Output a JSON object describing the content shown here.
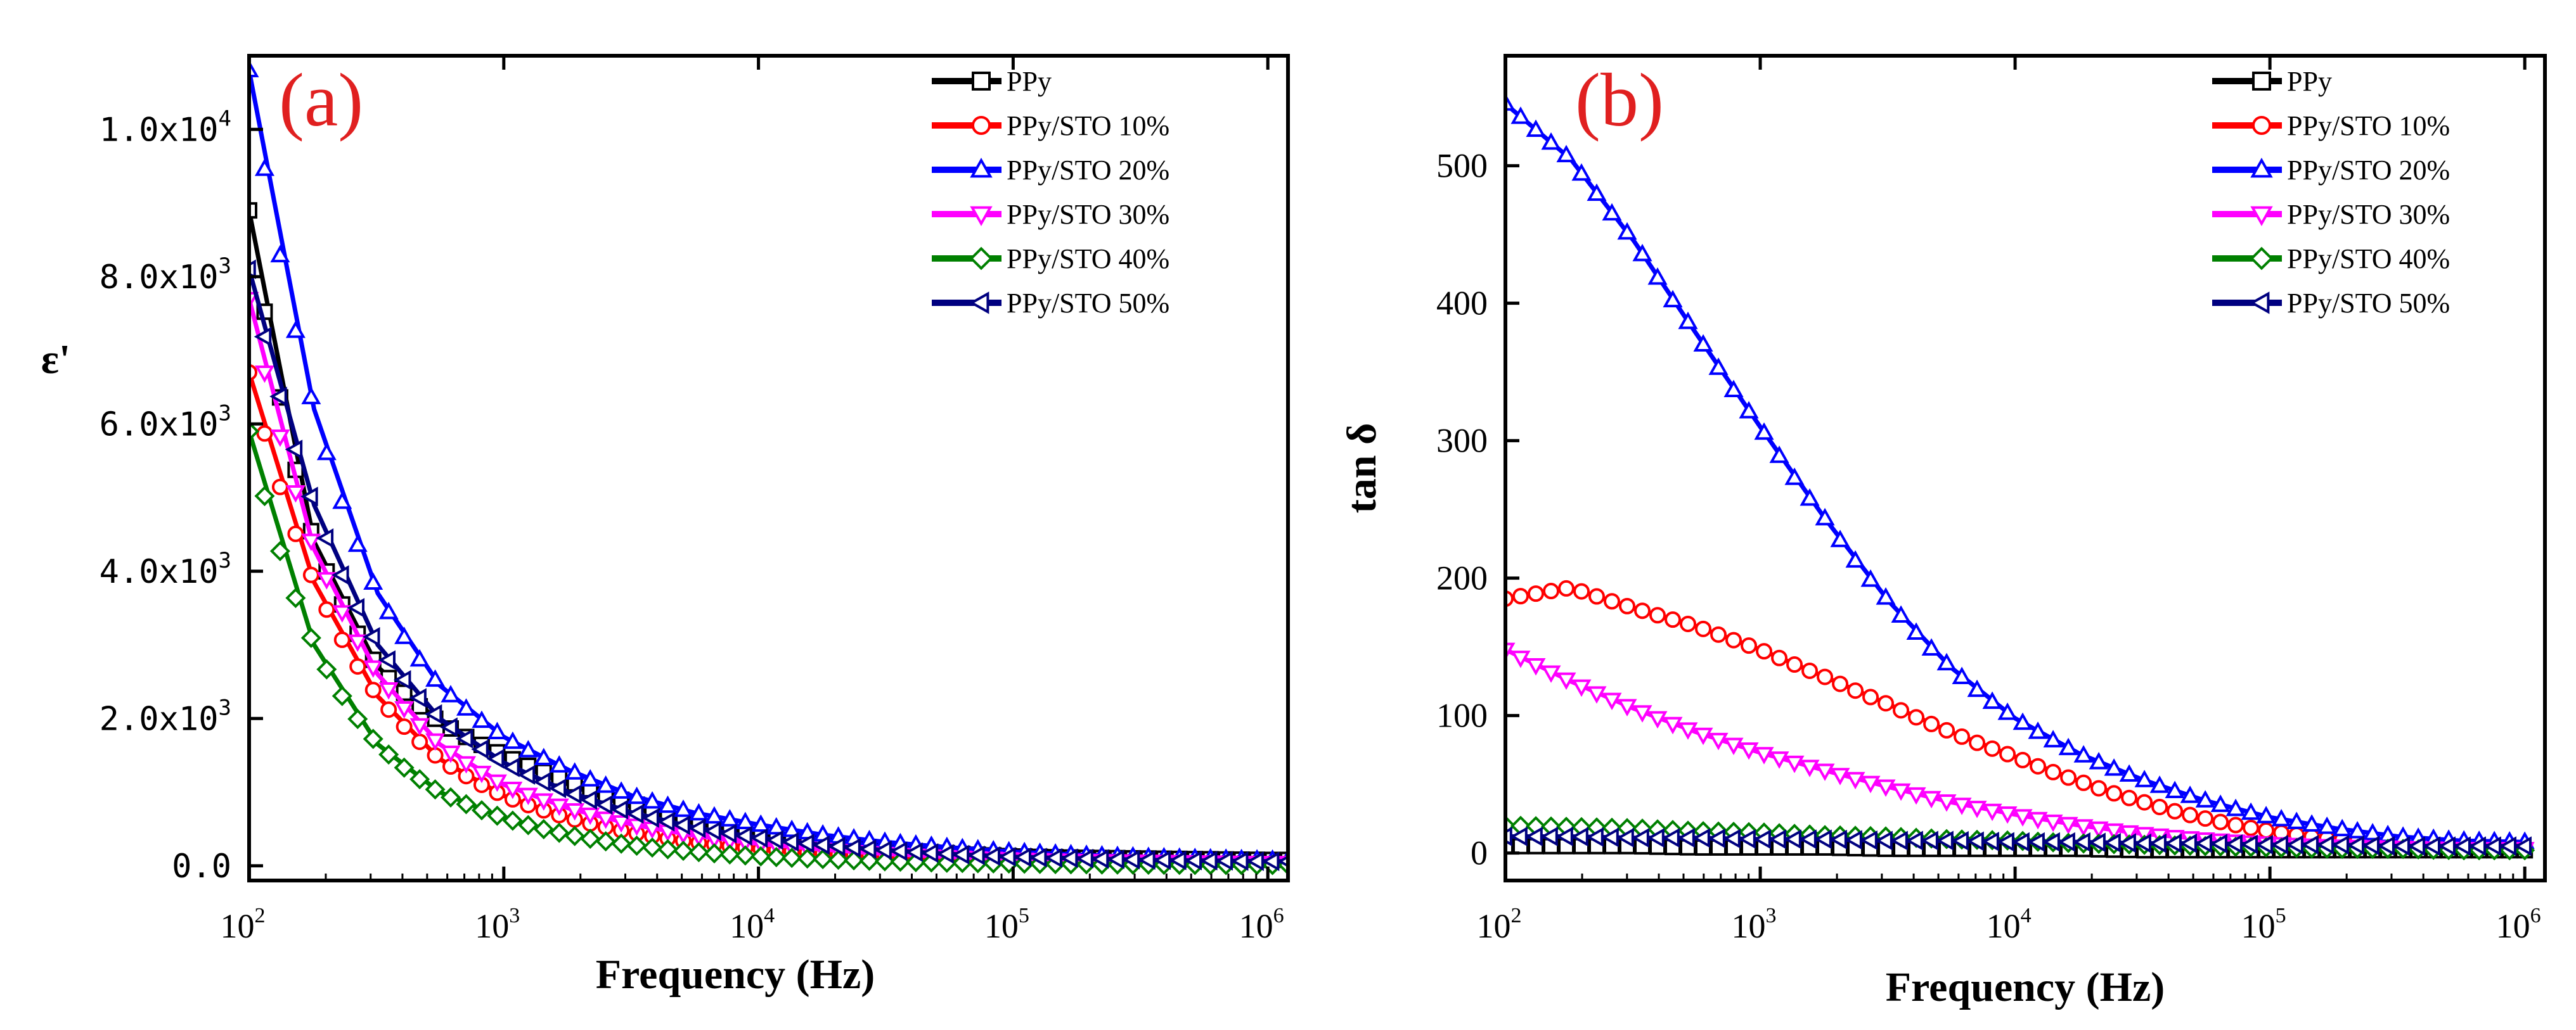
{
  "chart_data": [
    {
      "type": "line",
      "panel_label": "(a)",
      "xlabel": "Frequency (Hz)",
      "ylabel": "ε'",
      "xscale": "log",
      "xlim": [
        100,
        1200000
      ],
      "ylim": [
        -200,
        11000
      ],
      "x_ticks": [
        {
          "value": 100,
          "base": "10",
          "exp": "2"
        },
        {
          "value": 1000,
          "base": "10",
          "exp": "3"
        },
        {
          "value": 10000,
          "base": "10",
          "exp": "4"
        },
        {
          "value": 100000,
          "base": "10",
          "exp": "5"
        },
        {
          "value": 1000000,
          "base": "10",
          "exp": "6"
        }
      ],
      "y_ticks": [
        {
          "value": 0,
          "mant": "0.0",
          "exp": ""
        },
        {
          "value": 2000,
          "mant": "2.0x10",
          "exp": "3"
        },
        {
          "value": 4000,
          "mant": "4.0x10",
          "exp": "3"
        },
        {
          "value": 6000,
          "mant": "6.0x10",
          "exp": "3"
        },
        {
          "value": 8000,
          "mant": "8.0x10",
          "exp": "3"
        },
        {
          "value": 10000,
          "mant": "1.0x10",
          "exp": "4"
        }
      ],
      "legend_position": "top-right",
      "x": [
        100,
        180,
        320,
        560,
        1000,
        1800,
        3200,
        5600,
        10000,
        18000,
        32000,
        56000,
        100000,
        180000,
        320000,
        560000,
        1000000,
        1200000
      ],
      "series": [
        {
          "name": "PPy",
          "marker": "square",
          "color": "#000000",
          "values": [
            8900,
            4400,
            2700,
            1950,
            1500,
            1150,
            850,
            600,
            420,
            300,
            220,
            170,
            130,
            110,
            100,
            90,
            80,
            80
          ]
        },
        {
          "name": "PPy/STO 10%",
          "marker": "circle",
          "color": "#ff0000",
          "values": [
            6700,
            3850,
            2300,
            1450,
            950,
            650,
            450,
            320,
            230,
            170,
            130,
            100,
            80,
            70,
            60,
            50,
            40,
            40
          ]
        },
        {
          "name": "PPy/STO 20%",
          "marker": "triangle-up",
          "color": "#0000ff",
          "values": [
            10800,
            6200,
            3700,
            2450,
            1750,
            1300,
            950,
            720,
            560,
            420,
            320,
            250,
            190,
            150,
            120,
            100,
            80,
            80
          ]
        },
        {
          "name": "PPy/STO 30%",
          "marker": "triangle-down",
          "color": "#ff00ff",
          "values": [
            7700,
            4300,
            2600,
            1650,
            1100,
            780,
            560,
            410,
            300,
            220,
            160,
            120,
            90,
            70,
            60,
            50,
            40,
            40
          ]
        },
        {
          "name": "PPy/STO 40%",
          "marker": "diamond",
          "color": "#008000",
          "values": [
            5900,
            3000,
            1650,
            1000,
            650,
            420,
            280,
            190,
            130,
            90,
            60,
            40,
            30,
            20,
            15,
            10,
            10,
            10
          ]
        },
        {
          "name": "PPy/STO 50%",
          "marker": "triangle-left",
          "color": "#000080",
          "values": [
            8100,
            4900,
            3000,
            2000,
            1400,
            1000,
            720,
            520,
            380,
            280,
            210,
            160,
            120,
            100,
            80,
            70,
            60,
            60
          ]
        }
      ]
    },
    {
      "type": "line",
      "panel_label": "(b)",
      "xlabel": "Frequency (Hz)",
      "ylabel": "tan δ",
      "xscale": "log",
      "xlim": [
        100,
        1200000
      ],
      "ylim": [
        -20,
        580
      ],
      "x_ticks": [
        {
          "value": 100,
          "base": "10",
          "exp": "2"
        },
        {
          "value": 1000,
          "base": "10",
          "exp": "3"
        },
        {
          "value": 10000,
          "base": "10",
          "exp": "4"
        },
        {
          "value": 100000,
          "base": "10",
          "exp": "5"
        },
        {
          "value": 1000000,
          "base": "10",
          "exp": "6"
        }
      ],
      "y_ticks": [
        {
          "value": 0,
          "mant": "0",
          "exp": ""
        },
        {
          "value": 100,
          "mant": "100",
          "exp": ""
        },
        {
          "value": 200,
          "mant": "200",
          "exp": ""
        },
        {
          "value": 300,
          "mant": "300",
          "exp": ""
        },
        {
          "value": 400,
          "mant": "400",
          "exp": ""
        },
        {
          "value": 500,
          "mant": "500",
          "exp": ""
        }
      ],
      "legend_position": "top-right",
      "x": [
        100,
        180,
        320,
        560,
        1000,
        1800,
        3200,
        5600,
        10000,
        18000,
        32000,
        56000,
        100000,
        180000,
        320000,
        560000,
        1000000
      ],
      "series": [
        {
          "name": "PPy",
          "marker": "square",
          "color": "#000000",
          "values": [
            5,
            5,
            5,
            4,
            4,
            4,
            3,
            3,
            3,
            3,
            2,
            2,
            2,
            2,
            2,
            2,
            2
          ]
        },
        {
          "name": "PPy/STO 10%",
          "marker": "circle",
          "color": "#ff0000",
          "values": [
            185,
            193,
            178,
            165,
            148,
            128,
            108,
            88,
            70,
            52,
            37,
            25,
            16,
            10,
            7,
            5,
            4
          ]
        },
        {
          "name": "PPy/STO 20%",
          "marker": "triangle-up",
          "color": "#0000ff",
          "values": [
            545,
            505,
            445,
            378,
            310,
            243,
            183,
            135,
            98,
            72,
            53,
            38,
            26,
            18,
            12,
            9,
            8
          ]
        },
        {
          "name": "PPy/STO 30%",
          "marker": "triangle-down",
          "color": "#ff00ff",
          "values": [
            148,
            125,
            105,
            88,
            73,
            60,
            48,
            37,
            28,
            20,
            14,
            10,
            7,
            5,
            4,
            3,
            3
          ]
        },
        {
          "name": "PPy/STO 40%",
          "marker": "diamond",
          "color": "#008000",
          "values": [
            20,
            19,
            18,
            16,
            15,
            13,
            12,
            10,
            9,
            7,
            6,
            5,
            4,
            3,
            3,
            2,
            2
          ]
        },
        {
          "name": "PPy/STO 50%",
          "marker": "triangle-left",
          "color": "#000080",
          "values": [
            12,
            12,
            11,
            11,
            10,
            10,
            9,
            9,
            8,
            8,
            7,
            7,
            6,
            6,
            5,
            5,
            5
          ]
        }
      ]
    }
  ]
}
